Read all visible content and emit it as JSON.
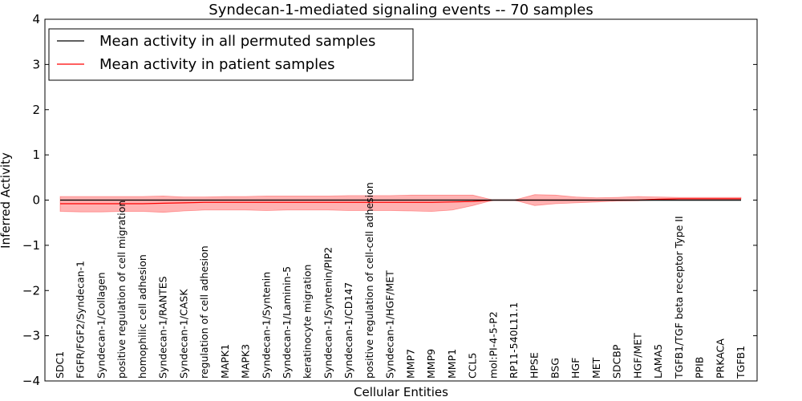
{
  "chart_data": {
    "type": "line",
    "title": "Syndecan-1-mediated signaling events -- 70 samples",
    "xlabel": "Cellular Entities",
    "ylabel": "Inferred Activity",
    "ylim": [
      -4,
      4
    ],
    "yticks": [
      -4,
      -3,
      -2,
      -1,
      0,
      1,
      2,
      3,
      4
    ],
    "ytick_labels": [
      "−4",
      "−3",
      "−2",
      "−1",
      "0",
      "1",
      "2",
      "3",
      "4"
    ],
    "categories": [
      "SDC1",
      "FGFR/FGF2/Syndecan-1",
      "Syndecan-1/Collagen",
      "positive regulation of cell migration",
      "homophilic cell adhesion",
      "Syndecan-1/RANTES",
      "Syndecan-1/CASK",
      "regulation of cell adhesion",
      "MAPK1",
      "MAPK3",
      "Syndecan-1/Syntenin",
      "Syndecan-1/Laminin-5",
      "keratinocyte migration",
      "Syndecan-1/Syntenin/PIP2",
      "Syndecan-1/CD147",
      "positive regulation of cell-cell adhesion",
      "Syndecan-1/HGF/MET",
      "MMP7",
      "MMP9",
      "MMP1",
      "CCL5",
      "mol:PI-4-5-P2",
      "RP11-540L11.1",
      "HPSE",
      "BSG",
      "HGF",
      "MET",
      "SDCBP",
      "HGF/MET",
      "LAMA5",
      "TGFB1/TGF beta receptor Type II",
      "PPIB",
      "PRKACA",
      "TGFB1"
    ],
    "legend_position": "top-left",
    "legend": [
      "Mean activity in all permuted samples",
      "Mean activity in patient samples"
    ],
    "series": [
      {
        "name": "Mean activity in all permuted samples",
        "color": "#000000",
        "values": [
          0.0,
          0.0,
          0.0,
          0.0,
          0.0,
          0.0,
          0.0,
          0.0,
          0.0,
          0.0,
          0.0,
          0.0,
          0.0,
          0.0,
          0.0,
          0.0,
          0.0,
          0.0,
          0.0,
          0.0,
          0.0,
          0.0,
          0.0,
          0.0,
          0.0,
          0.0,
          0.0,
          0.0,
          0.0,
          0.0,
          0.0,
          0.0,
          0.0,
          0.0
        ],
        "band_lower": [
          -0.03,
          -0.03,
          -0.03,
          -0.03,
          -0.03,
          -0.03,
          -0.03,
          -0.03,
          -0.03,
          -0.03,
          -0.03,
          -0.03,
          -0.03,
          -0.03,
          -0.03,
          -0.03,
          -0.03,
          -0.03,
          -0.03,
          -0.03,
          -0.03,
          -0.03,
          -0.03,
          -0.03,
          -0.03,
          -0.03,
          -0.03,
          -0.03,
          -0.03,
          -0.03,
          -0.03,
          -0.03,
          -0.03,
          -0.03
        ],
        "band_upper": [
          0.03,
          0.03,
          0.03,
          0.03,
          0.03,
          0.03,
          0.03,
          0.03,
          0.03,
          0.03,
          0.03,
          0.03,
          0.03,
          0.03,
          0.03,
          0.03,
          0.03,
          0.03,
          0.03,
          0.03,
          0.03,
          0.03,
          0.03,
          0.03,
          0.03,
          0.03,
          0.03,
          0.03,
          0.03,
          0.03,
          0.03,
          0.03,
          0.03,
          0.03
        ]
      },
      {
        "name": "Mean activity in patient samples",
        "color": "#ff0000",
        "band_color": "#ff9999",
        "values": [
          -0.08,
          -0.08,
          -0.08,
          -0.08,
          -0.08,
          -0.07,
          -0.06,
          -0.05,
          -0.05,
          -0.05,
          -0.05,
          -0.05,
          -0.05,
          -0.05,
          -0.05,
          -0.05,
          -0.05,
          -0.05,
          -0.05,
          -0.04,
          -0.03,
          0.0,
          0.0,
          0.0,
          0.0,
          0.0,
          0.0,
          0.0,
          0.0,
          0.02,
          0.03,
          0.03,
          0.03,
          0.03
        ],
        "band_lower": [
          -0.25,
          -0.26,
          -0.26,
          -0.25,
          -0.25,
          -0.27,
          -0.24,
          -0.22,
          -0.22,
          -0.22,
          -0.23,
          -0.22,
          -0.22,
          -0.22,
          -0.23,
          -0.23,
          -0.23,
          -0.24,
          -0.25,
          -0.22,
          -0.12,
          0.0,
          0.0,
          -0.12,
          -0.08,
          -0.06,
          -0.04,
          -0.02,
          -0.01,
          0.0,
          0.02,
          0.02,
          0.02,
          0.02
        ],
        "band_upper": [
          0.08,
          0.08,
          0.08,
          0.08,
          0.08,
          0.09,
          0.07,
          0.07,
          0.08,
          0.08,
          0.09,
          0.09,
          0.09,
          0.09,
          0.1,
          0.1,
          0.1,
          0.11,
          0.11,
          0.11,
          0.11,
          0.0,
          0.0,
          0.12,
          0.11,
          0.07,
          0.05,
          0.06,
          0.08,
          0.07,
          0.06,
          0.06,
          0.06,
          0.06
        ]
      }
    ]
  }
}
